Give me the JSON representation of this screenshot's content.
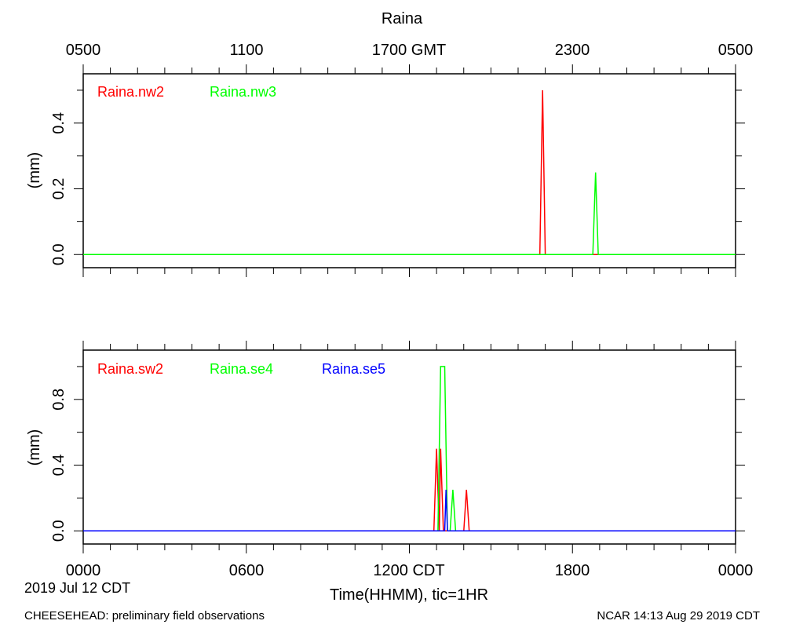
{
  "title": "Raina",
  "top_axis_ticks": [
    "0500",
    "1100",
    "1700 GMT",
    "2300",
    "0500"
  ],
  "bottom_axis_ticks": [
    "0000",
    "0600",
    "1200 CDT",
    "1800",
    "0000"
  ],
  "date_label": "2019 Jul 12 CDT",
  "xlabel": "Time(HHMM), tic=1HR",
  "footer_left": "CHEESEHEAD: preliminary field observations",
  "footer_right": "NCAR 14:13 Aug 29 2019 CDT",
  "chart_data": [
    {
      "type": "line",
      "ylabel": "(mm)",
      "xlim": [
        0,
        24
      ],
      "ylim": [
        -0.04,
        0.55
      ],
      "y_ticks": [
        0.0,
        0.2,
        0.4
      ],
      "y_tick_labels": [
        "0.0",
        "0.2",
        "0.4"
      ],
      "series": [
        {
          "name": "Raina.nw2",
          "color": "#ff0000",
          "x": [
            0,
            16.8,
            16.9,
            17.0,
            24
          ],
          "y": [
            0,
            0,
            0.5,
            0,
            0
          ]
        },
        {
          "name": "Raina.nw3",
          "color": "#00ff00",
          "x": [
            0,
            18.75,
            18.85,
            18.95,
            24
          ],
          "y": [
            0,
            0,
            0.25,
            0,
            0
          ]
        }
      ]
    },
    {
      "type": "line",
      "ylabel": "(mm)",
      "xlim": [
        0,
        24
      ],
      "ylim": [
        -0.08,
        1.1
      ],
      "y_ticks": [
        0.0,
        0.4,
        0.8
      ],
      "y_tick_labels": [
        "0.0",
        "0.4",
        "0.8"
      ],
      "series": [
        {
          "name": "Raina.sw2",
          "color": "#ff0000",
          "x": [
            0,
            12.9,
            13.0,
            13.1,
            13.15,
            13.25,
            13.35,
            14.0,
            14.1,
            14.2,
            24
          ],
          "y": [
            0,
            0,
            0.5,
            0,
            0.5,
            0,
            0,
            0,
            0.25,
            0,
            0
          ]
        },
        {
          "name": "Raina.se4",
          "color": "#00ff00",
          "x": [
            0,
            13.05,
            13.15,
            13.3,
            13.4,
            13.5,
            13.6,
            13.7,
            24
          ],
          "y": [
            0,
            0,
            1.0,
            1.0,
            0,
            0,
            0.25,
            0,
            0
          ]
        },
        {
          "name": "Raina.se5",
          "color": "#0000ff",
          "x": [
            0,
            13.3,
            13.35,
            13.4,
            24
          ],
          "y": [
            0,
            0,
            0.25,
            0,
            0
          ]
        }
      ]
    }
  ]
}
